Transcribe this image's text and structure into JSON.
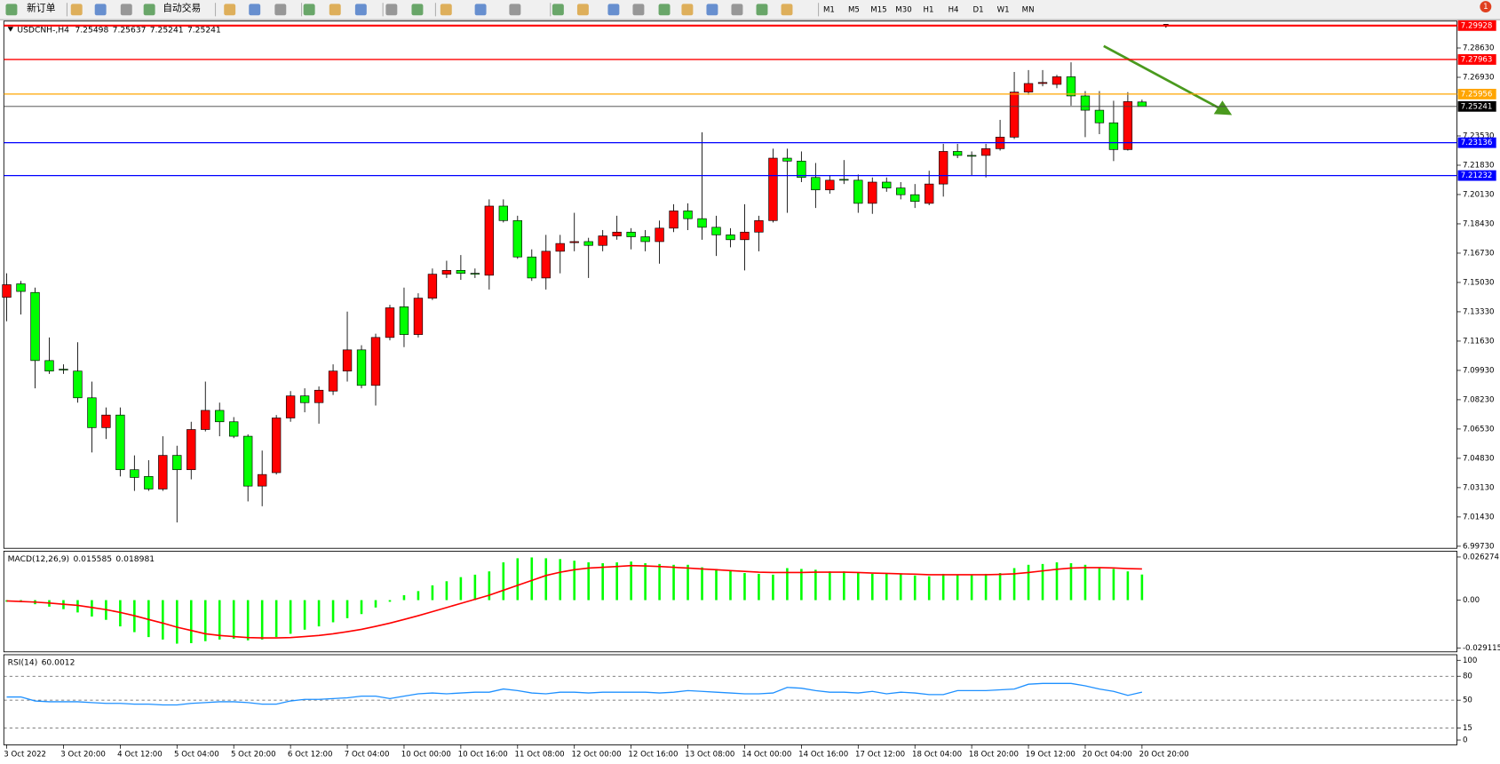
{
  "toolbar": {
    "new_order": "新订单",
    "auto_trading": "自动交易",
    "timeframes": [
      "M1",
      "M5",
      "M15",
      "M30",
      "H1",
      "H4",
      "D1",
      "W1",
      "MN"
    ],
    "badge": "1"
  },
  "chart_data": [
    {
      "type": "candlestick",
      "title": "USDCNH-,H4",
      "bull_color": "#ff0000",
      "bear_color": "#00ff00",
      "grid": false,
      "categories": [
        "3 Oct 2022",
        null,
        null,
        null,
        "3 Oct 20:00",
        null,
        null,
        null,
        "4 Oct 12:00",
        null,
        null,
        null,
        "5 Oct 04:00",
        null,
        null,
        null,
        "5 Oct 20:00",
        null,
        null,
        null,
        "6 Oct 12:00",
        null,
        null,
        null,
        "7 Oct 04:00",
        null,
        null,
        null,
        "10 Oct 00:00",
        null,
        null,
        null,
        "10 Oct 16:00",
        null,
        null,
        null,
        "11 Oct 08:00",
        null,
        null,
        null,
        "12 Oct 00:00",
        null,
        null,
        null,
        "12 Oct 16:00",
        null,
        null,
        null,
        "13 Oct 08:00",
        null,
        null,
        null,
        "14 Oct 00:00",
        null,
        null,
        null,
        "14 Oct 16:00",
        null,
        null,
        null,
        "17 Oct 12:00",
        null,
        null,
        null,
        "18 Oct 04:00",
        null,
        null,
        null,
        "18 Oct 20:00",
        null,
        null,
        null,
        "19 Oct 12:00",
        null,
        null,
        null,
        "20 Oct 04:00",
        null,
        null,
        null,
        "20 Oct 20:00"
      ],
      "open": [
        7.1417,
        7.1495,
        7.1445,
        7.105,
        7.1,
        7.0989,
        7.0834,
        7.0661,
        7.0734,
        7.0417,
        7.0378,
        7.0305,
        7.05,
        7.0417,
        7.065,
        7.0761,
        7.0695,
        7.0611,
        7.0322,
        7.04,
        7.0717,
        7.0845,
        7.0806,
        7.0873,
        7.0989,
        7.1112,
        7.0906,
        7.1184,
        7.1362,
        7.1201,
        7.1412,
        7.1551,
        7.1573,
        7.1556,
        7.1545,
        7.1946,
        7.1862,
        7.1651,
        7.1529,
        7.1684,
        7.1734,
        7.174,
        7.1718,
        7.1773,
        7.1795,
        7.1768,
        7.174,
        7.1818,
        7.1918,
        7.1873,
        7.1823,
        7.1779,
        7.1751,
        7.1795,
        7.1862,
        7.2224,
        7.2207,
        7.2112,
        7.204,
        7.2101,
        7.2096,
        7.1962,
        7.2085,
        7.2051,
        7.2012,
        7.1962,
        7.2074,
        7.2263,
        7.224,
        7.224,
        7.2279,
        7.2346,
        7.2607,
        7.2657,
        7.2652,
        7.2696,
        7.2585,
        7.2502,
        7.2429,
        7.2274,
        7.25498
      ],
      "high": [
        7.1556,
        7.1512,
        7.1473,
        7.1184,
        7.1028,
        7.1156,
        7.0928,
        7.0778,
        7.0778,
        7.05,
        7.0472,
        7.0611,
        7.0556,
        7.0695,
        7.0928,
        7.0806,
        7.0722,
        7.0622,
        7.0528,
        7.0734,
        7.0873,
        7.0889,
        7.09,
        7.1028,
        7.1334,
        7.1139,
        7.1206,
        7.1373,
        7.1473,
        7.144,
        7.1584,
        7.1629,
        7.1662,
        7.1584,
        7.1985,
        7.1985,
        7.189,
        7.1695,
        7.1779,
        7.1779,
        7.1907,
        7.1762,
        7.1807,
        7.189,
        7.1818,
        7.1807,
        7.1862,
        7.1957,
        7.1962,
        7.2374,
        7.189,
        7.1818,
        7.1957,
        7.189,
        7.2279,
        7.2279,
        7.2263,
        7.2196,
        7.2124,
        7.2213,
        7.2129,
        7.2112,
        7.2112,
        7.2085,
        7.2074,
        7.2151,
        7.2307,
        7.2307,
        7.2263,
        7.2307,
        7.2446,
        7.2724,
        7.2735,
        7.2735,
        7.2707,
        7.278,
        7.2613,
        7.2613,
        7.2557,
        7.2607,
        7.25637
      ],
      "low": [
        7.1278,
        7.1317,
        7.0889,
        7.0973,
        7.0973,
        7.0806,
        7.0517,
        7.0595,
        7.0378,
        7.0294,
        7.0294,
        7.0294,
        7.0111,
        7.0361,
        7.0639,
        7.0611,
        7.06,
        7.0233,
        7.0205,
        7.0389,
        7.0695,
        7.075,
        7.0684,
        7.085,
        7.0928,
        7.0889,
        7.0789,
        7.1167,
        7.1128,
        7.1184,
        7.1401,
        7.1529,
        7.1518,
        7.1529,
        7.1462,
        7.1851,
        7.164,
        7.1512,
        7.1462,
        7.1556,
        7.1684,
        7.1529,
        7.1684,
        7.1751,
        7.1695,
        7.1684,
        7.1612,
        7.1795,
        7.1807,
        7.1751,
        7.1657,
        7.1707,
        7.1573,
        7.1684,
        7.1851,
        7.1907,
        7.2085,
        7.1935,
        7.2018,
        7.2074,
        7.1907,
        7.1901,
        7.2029,
        7.1985,
        7.1935,
        7.1951,
        7.2001,
        7.2224,
        7.2124,
        7.2112,
        7.2268,
        7.2335,
        7.2591,
        7.2641,
        7.263,
        7.2529,
        7.2346,
        7.2363,
        7.2207,
        7.2268,
        7.25241
      ],
      "close": [
        7.149,
        7.1451,
        7.105,
        7.0989,
        7.0995,
        7.0834,
        7.0661,
        7.0734,
        7.0417,
        7.0372,
        7.0305,
        7.05,
        7.0417,
        7.065,
        7.0761,
        7.0695,
        7.0611,
        7.0322,
        7.0389,
        7.0717,
        7.0845,
        7.0806,
        7.0878,
        7.0989,
        7.1112,
        7.0906,
        7.1184,
        7.1356,
        7.1201,
        7.1412,
        7.1551,
        7.1573,
        7.1556,
        7.1551,
        7.1946,
        7.1862,
        7.1651,
        7.1529,
        7.1684,
        7.1729,
        7.174,
        7.1718,
        7.1773,
        7.1795,
        7.1768,
        7.174,
        7.1818,
        7.1918,
        7.1873,
        7.1823,
        7.1779,
        7.1751,
        7.1795,
        7.1862,
        7.2224,
        7.2207,
        7.2112,
        7.204,
        7.2096,
        7.2096,
        7.1962,
        7.2085,
        7.2051,
        7.2012,
        7.1973,
        7.2074,
        7.2263,
        7.224,
        7.2235,
        7.2279,
        7.2346,
        7.2607,
        7.2657,
        7.2663,
        7.2696,
        7.2585,
        7.2502,
        7.2429,
        7.2274,
        7.2552,
        7.25241
      ],
      "ylim": [
        6.9961,
        7.3019
      ],
      "yticks": [
        {
          "value": 6.9973,
          "label": "6.99730"
        },
        {
          "value": 7.0143,
          "label": "7.01430"
        },
        {
          "value": 7.0313,
          "label": "7.03130"
        },
        {
          "value": 7.0483,
          "label": "7.04830"
        },
        {
          "value": 7.0653,
          "label": "7.06530"
        },
        {
          "value": 7.0823,
          "label": "7.08230"
        },
        {
          "value": 7.0993,
          "label": "7.09930"
        },
        {
          "value": 7.1163,
          "label": "7.11630"
        },
        {
          "value": 7.1333,
          "label": "7.13330"
        },
        {
          "value": 7.1503,
          "label": "7.15030"
        },
        {
          "value": 7.1673,
          "label": "7.16730"
        },
        {
          "value": 7.1843,
          "label": "7.18430"
        },
        {
          "value": 7.2013,
          "label": "7.20130"
        },
        {
          "value": 7.2183,
          "label": "7.21830"
        },
        {
          "value": 7.2353,
          "label": "7.23530"
        },
        {
          "value": 7.2693,
          "label": "7.26930"
        },
        {
          "value": 7.2863,
          "label": "7.28630"
        }
      ],
      "hlines": [
        {
          "value": 7.29928,
          "color": "#ff0000"
        },
        {
          "value": 7.27963,
          "color": "#ff0000"
        },
        {
          "value": 7.25956,
          "color": "#ffa500"
        },
        {
          "value": 7.23136,
          "color": "#0000ff"
        },
        {
          "value": 7.21232,
          "color": "#0000ff"
        }
      ]
    },
    {
      "type": "macd",
      "title": "MACD(12,26,9)",
      "series": [
        {
          "color": "#00ff00",
          "values": [
            -0.001,
            -0.0012,
            -0.0025,
            -0.004,
            -0.0055,
            -0.0075,
            -0.01,
            -0.012,
            -0.016,
            -0.0195,
            -0.0225,
            -0.024,
            -0.0265,
            -0.0262,
            -0.025,
            -0.024,
            -0.0235,
            -0.0245,
            -0.024,
            -0.0225,
            -0.0205,
            -0.018,
            -0.016,
            -0.0135,
            -0.011,
            -0.0085,
            -0.0045,
            -0.001,
            0.003,
            0.0055,
            0.009,
            0.0115,
            0.014,
            0.0155,
            0.0175,
            0.023,
            0.0255,
            0.026,
            0.0255,
            0.025,
            0.024,
            0.023,
            0.0225,
            0.023,
            0.0235,
            0.0225,
            0.022,
            0.0215,
            0.0215,
            0.02,
            0.019,
            0.018,
            0.0165,
            0.016,
            0.0155,
            0.0195,
            0.019,
            0.0185,
            0.0175,
            0.0175,
            0.017,
            0.016,
            0.0165,
            0.016,
            0.015,
            0.0145,
            0.016,
            0.0155,
            0.0155,
            0.016,
            0.0165,
            0.0195,
            0.0215,
            0.022,
            0.023,
            0.0225,
            0.0215,
            0.02,
            0.019,
            0.0175,
            0.015585
          ]
        },
        {
          "color": "#ff0000",
          "values": [
            -0.0005,
            -0.0008,
            -0.0012,
            -0.0018,
            -0.0025,
            -0.0032,
            -0.0045,
            -0.0058,
            -0.0075,
            -0.0095,
            -0.0118,
            -0.014,
            -0.0165,
            -0.0185,
            -0.0205,
            -0.0215,
            -0.0222,
            -0.0228,
            -0.023,
            -0.023,
            -0.0228,
            -0.0222,
            -0.0215,
            -0.0205,
            -0.0192,
            -0.0178,
            -0.016,
            -0.014,
            -0.0118,
            -0.0095,
            -0.007,
            -0.0045,
            -0.002,
            0.0005,
            0.003,
            0.006,
            0.009,
            0.012,
            0.015,
            0.017,
            0.0185,
            0.0195,
            0.02,
            0.0205,
            0.021,
            0.0208,
            0.0205,
            0.02,
            0.0195,
            0.019,
            0.0185,
            0.018,
            0.0175,
            0.017,
            0.0168,
            0.0168,
            0.0168,
            0.017,
            0.017,
            0.017,
            0.0168,
            0.0165,
            0.0163,
            0.016,
            0.0158,
            0.0155,
            0.0155,
            0.0155,
            0.0155,
            0.0155,
            0.0157,
            0.016,
            0.0168,
            0.0178,
            0.0188,
            0.0195,
            0.0198,
            0.0198,
            0.0196,
            0.0192,
            0.018981
          ]
        }
      ],
      "ylim": [
        -0.0315,
        0.0298
      ],
      "yticks": [
        0.026274,
        {
          "value": 0,
          "label": "0.00"
        },
        -0.029115
      ]
    },
    {
      "type": "line",
      "title": "RSI(14)",
      "color": "#1e90ff",
      "values": [
        54,
        54,
        49,
        48,
        48,
        48,
        47,
        46,
        46,
        45,
        45,
        44,
        44,
        46,
        47,
        48,
        48,
        47,
        45,
        45,
        49,
        51,
        51,
        52,
        53,
        55,
        55,
        52,
        55,
        58,
        59,
        58,
        59,
        60,
        60,
        64,
        62,
        59,
        58,
        60,
        60,
        59,
        60,
        60,
        60,
        60,
        59,
        60,
        62,
        61,
        60,
        59,
        58,
        58,
        59,
        66,
        65,
        62,
        60,
        60,
        59,
        61,
        58,
        60,
        59,
        57,
        57,
        62,
        62,
        62,
        63,
        64,
        70,
        71,
        71,
        71,
        68,
        64,
        61,
        56,
        60.0012
      ],
      "ylim": [
        -6,
        107
      ],
      "yticks": [
        100,
        80,
        50,
        15,
        0
      ],
      "levels": [
        80,
        50,
        15
      ]
    }
  ]
}
